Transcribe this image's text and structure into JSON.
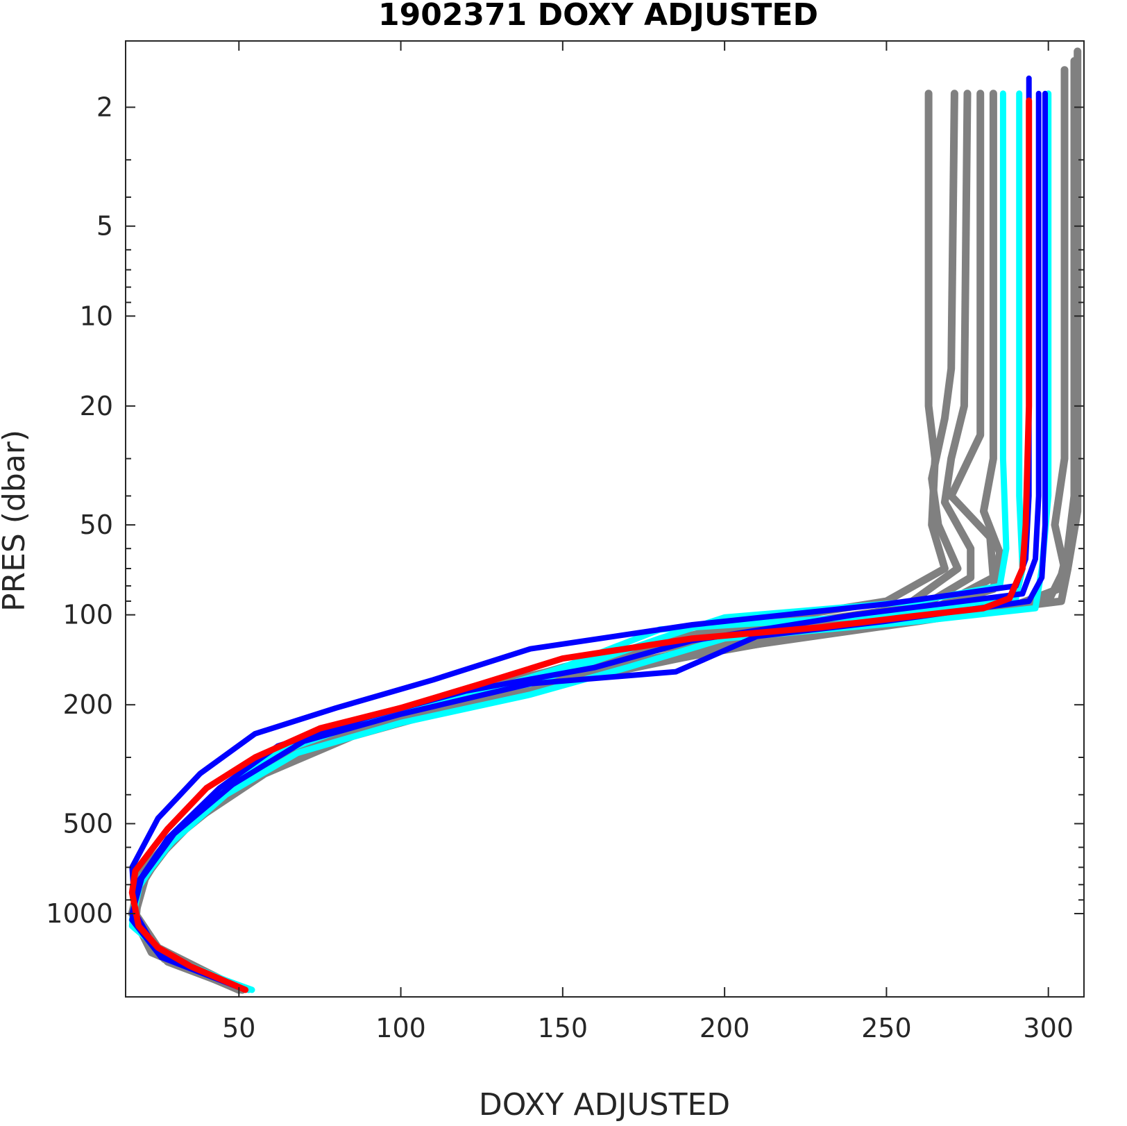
{
  "chart_data": {
    "type": "line",
    "title": "1902371  DOXY ADJUSTED",
    "xlabel": "DOXY ADJUSTED",
    "ylabel": "PRES (dbar)",
    "xlim": [
      15,
      311
    ],
    "ylim": [
      1.2,
      1900
    ],
    "yscale": "log",
    "yreverse": true,
    "x_ticks": [
      50,
      100,
      150,
      200,
      250,
      300
    ],
    "y_ticks": [
      2,
      5,
      10,
      20,
      50,
      100,
      200,
      500,
      1000
    ],
    "y_minor_ticks": [
      3,
      4,
      6,
      7,
      8,
      9,
      30,
      40,
      60,
      70,
      80,
      90,
      300,
      400,
      600,
      700,
      800,
      900
    ],
    "grid": false,
    "legend": "none",
    "colors": {
      "history": "#808080",
      "recent": "#00ffff",
      "previous": "#0000ff",
      "current": "#ff0000"
    },
    "series": [
      {
        "group": "history",
        "color": "#808080",
        "points": [
          [
            263,
            1.8
          ],
          [
            263,
            10
          ],
          [
            263,
            20
          ],
          [
            265,
            30
          ],
          [
            264,
            50
          ],
          [
            268,
            70
          ],
          [
            250,
            90
          ],
          [
            200,
            110
          ],
          [
            150,
            150
          ],
          [
            110,
            200
          ],
          [
            80,
            250
          ],
          [
            55,
            350
          ],
          [
            35,
            500
          ],
          [
            22,
            700
          ],
          [
            18,
            1000
          ],
          [
            25,
            1300
          ],
          [
            51,
            1800
          ]
        ]
      },
      {
        "group": "history",
        "color": "#808080",
        "points": [
          [
            271,
            1.8
          ],
          [
            270,
            15
          ],
          [
            268,
            22
          ],
          [
            264,
            35
          ],
          [
            266,
            50
          ],
          [
            272,
            70
          ],
          [
            255,
            95
          ],
          [
            190,
            120
          ],
          [
            140,
            160
          ],
          [
            100,
            210
          ],
          [
            75,
            260
          ],
          [
            50,
            370
          ],
          [
            32,
            520
          ],
          [
            20,
            720
          ],
          [
            17,
            1000
          ],
          [
            24,
            1350
          ],
          [
            50,
            1800
          ]
        ]
      },
      {
        "group": "history",
        "color": "#808080",
        "points": [
          [
            275,
            1.8
          ],
          [
            274,
            20
          ],
          [
            270,
            30
          ],
          [
            268,
            42
          ],
          [
            276,
            60
          ],
          [
            276,
            75
          ],
          [
            260,
            95
          ],
          [
            180,
            130
          ],
          [
            130,
            170
          ],
          [
            95,
            220
          ],
          [
            70,
            270
          ],
          [
            48,
            380
          ],
          [
            30,
            540
          ],
          [
            20,
            750
          ],
          [
            17,
            1000
          ],
          [
            23,
            1350
          ],
          [
            50,
            1800
          ]
        ]
      },
      {
        "group": "history",
        "color": "#808080",
        "points": [
          [
            279,
            1.8
          ],
          [
            279,
            25
          ],
          [
            270,
            40
          ],
          [
            282,
            55
          ],
          [
            283,
            75
          ],
          [
            265,
            95
          ],
          [
            210,
            125
          ],
          [
            145,
            165
          ],
          [
            105,
            215
          ],
          [
            72,
            275
          ],
          [
            50,
            380
          ],
          [
            31,
            540
          ],
          [
            20,
            760
          ],
          [
            17,
            1000
          ],
          [
            24,
            1350
          ],
          [
            50,
            1800
          ]
        ]
      },
      {
        "group": "history",
        "color": "#808080",
        "points": [
          [
            283,
            1.8
          ],
          [
            283,
            30
          ],
          [
            280,
            45
          ],
          [
            285,
            62
          ],
          [
            283,
            82
          ],
          [
            250,
            105
          ],
          [
            170,
            150
          ],
          [
            120,
            190
          ],
          [
            85,
            240
          ],
          [
            60,
            310
          ],
          [
            40,
            450
          ],
          [
            26,
            620
          ],
          [
            18,
            850
          ],
          [
            18,
            1100
          ],
          [
            28,
            1450
          ],
          [
            51,
            1800
          ]
        ]
      },
      {
        "group": "history",
        "color": "#808080",
        "points": [
          [
            305,
            1.5
          ],
          [
            305,
            30
          ],
          [
            302,
            50
          ],
          [
            305,
            70
          ],
          [
            300,
            90
          ],
          [
            260,
            105
          ],
          [
            200,
            130
          ],
          [
            160,
            160
          ],
          [
            120,
            200
          ],
          [
            85,
            255
          ],
          [
            58,
            340
          ],
          [
            36,
            490
          ],
          [
            22,
            700
          ],
          [
            17,
            1000
          ],
          [
            25,
            1350
          ],
          [
            50,
            1800
          ]
        ]
      },
      {
        "group": "history",
        "color": "#808080",
        "points": [
          [
            308,
            1.4
          ],
          [
            308,
            40
          ],
          [
            306,
            60
          ],
          [
            303,
            82
          ],
          [
            285,
            97
          ],
          [
            240,
            110
          ],
          [
            180,
            140
          ],
          [
            140,
            175
          ],
          [
            100,
            220
          ],
          [
            70,
            285
          ],
          [
            48,
            390
          ],
          [
            30,
            560
          ],
          [
            20,
            780
          ],
          [
            17,
            1000
          ],
          [
            24,
            1350
          ],
          [
            50,
            1800
          ]
        ]
      },
      {
        "group": "history",
        "color": "#808080",
        "points": [
          [
            309,
            1.3
          ],
          [
            309,
            45
          ],
          [
            306,
            70
          ],
          [
            304,
            90
          ],
          [
            270,
            100
          ],
          [
            220,
            115
          ],
          [
            170,
            145
          ],
          [
            125,
            190
          ],
          [
            90,
            235
          ],
          [
            62,
            300
          ],
          [
            42,
            430
          ],
          [
            27,
            600
          ],
          [
            19,
            830
          ],
          [
            18,
            1100
          ],
          [
            27,
            1420
          ],
          [
            51,
            1800
          ]
        ]
      },
      {
        "group": "recent",
        "color": "#00ffff",
        "points": [
          [
            286,
            1.8
          ],
          [
            286,
            30
          ],
          [
            287,
            60
          ],
          [
            285,
            80
          ],
          [
            260,
            90
          ],
          [
            200,
            102
          ],
          [
            180,
            120
          ],
          [
            140,
            170
          ],
          [
            100,
            210
          ],
          [
            72,
            255
          ],
          [
            50,
            360
          ],
          [
            33,
            520
          ],
          [
            20,
            750
          ],
          [
            17,
            1050
          ],
          [
            25,
            1350
          ],
          [
            53,
            1800
          ]
        ]
      },
      {
        "group": "recent",
        "color": "#00ffff",
        "points": [
          [
            291,
            1.8
          ],
          [
            291,
            40
          ],
          [
            292,
            70
          ],
          [
            290,
            88
          ],
          [
            250,
            100
          ],
          [
            180,
            112
          ],
          [
            150,
            150
          ],
          [
            130,
            175
          ],
          [
            90,
            225
          ],
          [
            60,
            295
          ],
          [
            42,
            410
          ],
          [
            27,
            600
          ],
          [
            18,
            850
          ],
          [
            17,
            1100
          ],
          [
            30,
            1450
          ],
          [
            54,
            1800
          ]
        ]
      },
      {
        "group": "recent",
        "color": "#00ffff",
        "points": [
          [
            300,
            1.8
          ],
          [
            300,
            40
          ],
          [
            298,
            70
          ],
          [
            296,
            95
          ],
          [
            260,
            105
          ],
          [
            200,
            120
          ],
          [
            170,
            150
          ],
          [
            140,
            185
          ],
          [
            100,
            230
          ],
          [
            68,
            290
          ],
          [
            46,
            400
          ],
          [
            29,
            580
          ],
          [
            19,
            800
          ],
          [
            17,
            1050
          ],
          [
            27,
            1400
          ],
          [
            53,
            1800
          ]
        ]
      },
      {
        "group": "previous",
        "color": "#0000ff",
        "points": [
          [
            294,
            1.6
          ],
          [
            294,
            40
          ],
          [
            293,
            65
          ],
          [
            290,
            80
          ],
          [
            250,
            92
          ],
          [
            190,
            108
          ],
          [
            140,
            130
          ],
          [
            110,
            165
          ],
          [
            80,
            205
          ],
          [
            55,
            250
          ],
          [
            38,
            340
          ],
          [
            25,
            480
          ],
          [
            17,
            700
          ],
          [
            18,
            1000
          ],
          [
            25,
            1350
          ],
          [
            52,
            1800
          ]
        ]
      },
      {
        "group": "previous",
        "color": "#0000ff",
        "points": [
          [
            297,
            1.8
          ],
          [
            297,
            40
          ],
          [
            296,
            65
          ],
          [
            292,
            85
          ],
          [
            240,
            100
          ],
          [
            190,
            122
          ],
          [
            160,
            150
          ],
          [
            120,
            180
          ],
          [
            90,
            220
          ],
          [
            62,
            275
          ],
          [
            44,
            380
          ],
          [
            28,
            560
          ],
          [
            19,
            780
          ],
          [
            17,
            1050
          ],
          [
            26,
            1400
          ],
          [
            52,
            1800
          ]
        ]
      },
      {
        "group": "previous",
        "color": "#0000ff",
        "points": [
          [
            299,
            1.8
          ],
          [
            299,
            50
          ],
          [
            298,
            75
          ],
          [
            294,
            90
          ],
          [
            250,
            105
          ],
          [
            210,
            118
          ],
          [
            185,
            155
          ],
          [
            140,
            170
          ],
          [
            100,
            215
          ],
          [
            70,
            265
          ],
          [
            48,
            370
          ],
          [
            30,
            540
          ],
          [
            20,
            760
          ],
          [
            17,
            1000
          ],
          [
            25,
            1350
          ],
          [
            52,
            1800
          ]
        ]
      },
      {
        "group": "current",
        "color": "#ff0000",
        "points": [
          [
            294,
            1.9
          ],
          [
            294,
            20
          ],
          [
            293,
            50
          ],
          [
            292,
            70
          ],
          [
            288,
            88
          ],
          [
            280,
            95
          ],
          [
            255,
            102
          ],
          [
            230,
            110
          ],
          [
            190,
            120
          ],
          [
            150,
            140
          ],
          [
            125,
            170
          ],
          [
            100,
            205
          ],
          [
            75,
            240
          ],
          [
            55,
            300
          ],
          [
            40,
            380
          ],
          [
            28,
            520
          ],
          [
            18,
            720
          ],
          [
            17,
            850
          ],
          [
            19,
            1100
          ],
          [
            25,
            1300
          ],
          [
            35,
            1500
          ],
          [
            52,
            1800
          ]
        ]
      }
    ]
  }
}
